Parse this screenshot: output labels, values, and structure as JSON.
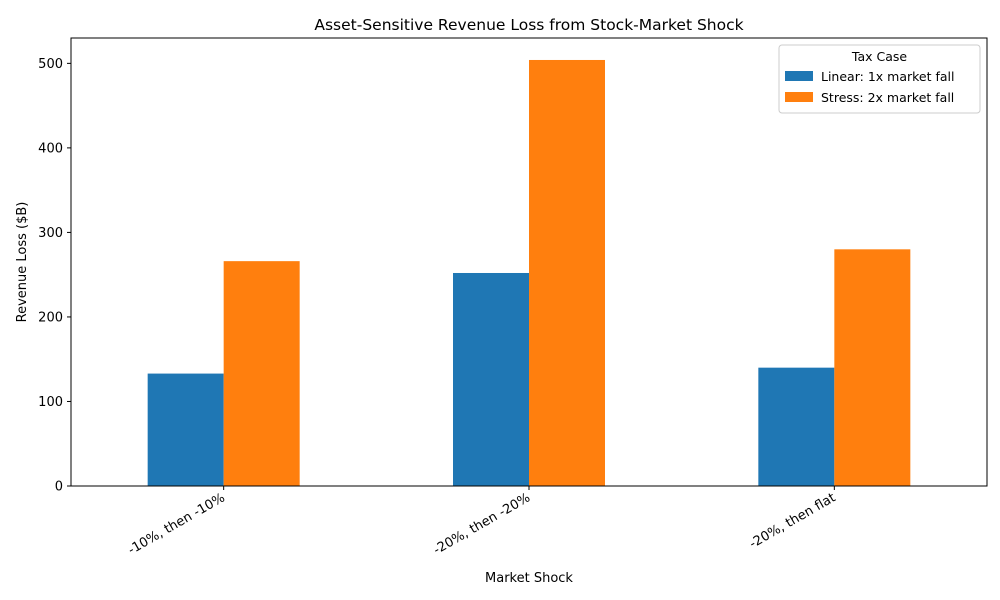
{
  "chart_data": {
    "type": "bar",
    "title": "Asset-Sensitive Revenue Loss from Stock-Market Shock",
    "xlabel": "Market Shock",
    "ylabel": "Revenue Loss ($B)",
    "categories": [
      "-10%, then -10%",
      "-20%, then -20%",
      "-20%, then flat"
    ],
    "series": [
      {
        "name": "Linear: 1x market fall",
        "values": [
          133,
          252,
          140
        ],
        "color": "#1f77b4"
      },
      {
        "name": "Stress: 2x market fall",
        "values": [
          266,
          504,
          280
        ],
        "color": "#ff7f0e"
      }
    ],
    "ylim": [
      0,
      530
    ],
    "yticks": [
      0,
      100,
      200,
      300,
      400,
      500
    ],
    "legend": {
      "title": "Tax Case",
      "placement": "top-right"
    },
    "grid": false
  }
}
